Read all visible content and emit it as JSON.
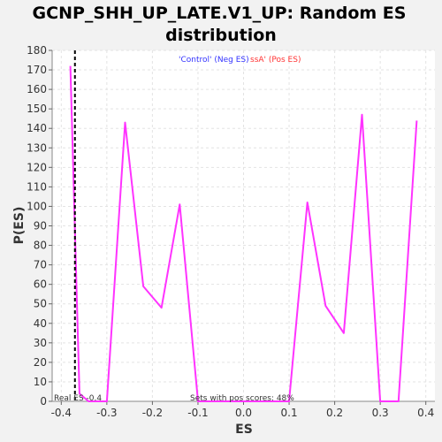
{
  "chart_data": {
    "type": "line",
    "title_lines": [
      "GCNP_SHH_UP_LATE.V1_UP: Random ES",
      "distribution"
    ],
    "xlabel": "ES",
    "ylabel": "P(ES)",
    "xlim": [
      -0.42,
      0.42
    ],
    "ylim": [
      0,
      180
    ],
    "xticks": [
      -0.4,
      -0.3,
      -0.2,
      -0.1,
      0.0,
      0.1,
      0.2,
      0.3,
      0.4
    ],
    "xtick_labels": [
      "-0.4",
      "-0.3",
      "-0.2",
      "-0.1",
      "0.0",
      "0.1",
      "0.2",
      "0.3",
      "0.4"
    ],
    "yticks": [
      0,
      10,
      20,
      30,
      40,
      50,
      60,
      70,
      80,
      90,
      100,
      110,
      120,
      130,
      140,
      150,
      160,
      170,
      180
    ],
    "grid": true,
    "series": [
      {
        "color": "#ff33ff",
        "x": [
          -0.38,
          -0.36,
          -0.34,
          -0.3,
          -0.26,
          -0.22,
          -0.18,
          -0.14,
          -0.1,
          -0.06,
          -0.02,
          0.02,
          0.06,
          0.1,
          0.14,
          0.18,
          0.22,
          0.26,
          0.3,
          0.34,
          0.38
        ],
        "y": [
          172,
          4,
          0,
          0,
          143,
          59,
          48,
          101,
          0,
          0,
          0,
          0,
          0,
          0,
          102,
          49,
          35,
          147,
          0,
          0,
          144
        ]
      }
    ],
    "real_es": -0.37,
    "legend": [
      {
        "text": "'Control' (Neg ES)",
        "color": "#3333ff"
      },
      {
        "text": "ssA' (Pos ES)",
        "color": "#ff3333"
      }
    ],
    "annotations": {
      "real_es_text": "Real ES -0.4",
      "pos_scores_text": "Sets with pos scores: 48%"
    },
    "plot_background": "#ffffff",
    "page_background": "#f2f2f2"
  }
}
